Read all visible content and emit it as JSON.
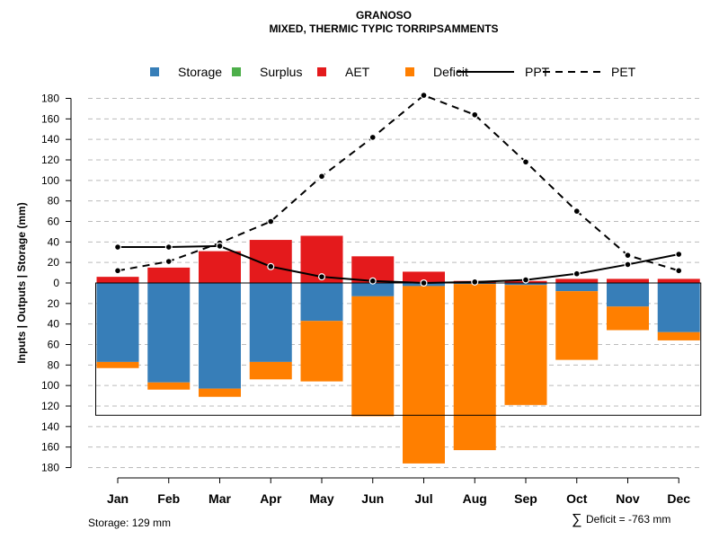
{
  "header": {
    "title": "GRANOSO",
    "subtitle": "MIXED, THERMIC TYPIC TORRIPSAMMENTS"
  },
  "footer": {
    "storage_text": "Storage: 129 mm",
    "deficit_symbol": "∑",
    "deficit_text": "Deficit = -763 mm"
  },
  "colors": {
    "storage": "#377EB8",
    "surplus": "#4DAF4A",
    "aet": "#E41A1C",
    "deficit": "#FF7F00",
    "line": "#000000",
    "grid": "#bbbbbb"
  },
  "chart_data": {
    "type": "bar",
    "title": "GRANOSO",
    "subtitle": "MIXED, THERMIC TYPIC TORRIPSAMMENTS",
    "ylabel": "Inputs | Outputs | Storage    (mm)",
    "ylim": [
      -180,
      190
    ],
    "yticks": [
      180,
      160,
      140,
      120,
      100,
      80,
      60,
      40,
      20,
      0,
      -20,
      -40,
      -60,
      -80,
      -100,
      -120,
      -140,
      -160,
      -180
    ],
    "ytick_labels": [
      "180",
      "160",
      "140",
      "120",
      "100",
      "80",
      "60",
      "40",
      "20",
      "0",
      "20",
      "40",
      "60",
      "80",
      "100",
      "120",
      "140",
      "160",
      "180"
    ],
    "categories": [
      "Jan",
      "Feb",
      "Mar",
      "Apr",
      "May",
      "Jun",
      "Jul",
      "Aug",
      "Sep",
      "Oct",
      "Nov",
      "Dec"
    ],
    "legend": [
      {
        "key": "storage",
        "label": "Storage",
        "kind": "box"
      },
      {
        "key": "surplus",
        "label": "Surplus",
        "kind": "box"
      },
      {
        "key": "aet",
        "label": "AET",
        "kind": "box"
      },
      {
        "key": "deficit",
        "label": "Deficit",
        "kind": "box"
      },
      {
        "key": "ppt",
        "label": "PPT",
        "kind": "solid"
      },
      {
        "key": "pet",
        "label": "PET",
        "kind": "dashed"
      }
    ],
    "series": [
      {
        "name": "AET",
        "key": "aet",
        "values": [
          6,
          15,
          31,
          42,
          46,
          26,
          11,
          2,
          2,
          4,
          4,
          4
        ]
      },
      {
        "name": "Surplus",
        "key": "surplus",
        "values": [
          0,
          0,
          0,
          0,
          0,
          0,
          0,
          0,
          0,
          0,
          0,
          0
        ]
      },
      {
        "name": "Storage",
        "key": "storage",
        "values": [
          -77,
          -97,
          -103,
          -77,
          -37,
          -13,
          -3,
          -1,
          -2,
          -8,
          -23,
          -48
        ]
      },
      {
        "name": "Deficit",
        "key": "deficit",
        "values": [
          -6,
          -7,
          -8,
          -17,
          -59,
          -117,
          -173,
          -162,
          -117,
          -67,
          -23,
          -8
        ]
      },
      {
        "name": "PPT",
        "key": "ppt",
        "values": [
          35,
          35,
          36,
          16,
          6,
          2,
          0,
          1,
          3,
          9,
          18,
          28
        ]
      },
      {
        "name": "PET",
        "key": "pet",
        "values": [
          12,
          21,
          39,
          60,
          104,
          142,
          183,
          164,
          118,
          70,
          27,
          12
        ]
      }
    ],
    "storage_capacity": -129,
    "grid": true
  }
}
